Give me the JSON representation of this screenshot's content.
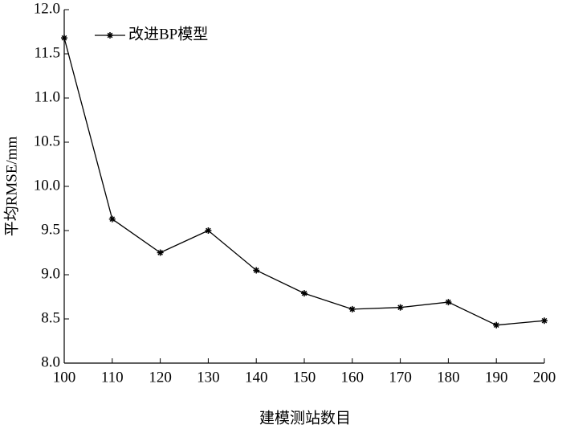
{
  "chart_data": {
    "type": "line",
    "x": [
      100,
      110,
      120,
      130,
      140,
      150,
      160,
      170,
      180,
      190,
      200
    ],
    "series": [
      {
        "name": "改进BP模型",
        "color": "#000000",
        "marker": "asterisk",
        "values": [
          11.68,
          9.63,
          9.25,
          9.5,
          9.05,
          8.79,
          8.61,
          8.63,
          8.69,
          8.43,
          8.48
        ]
      }
    ],
    "xlabel": "建模测站数目",
    "ylabel": "平均RMSE/mm",
    "xlim": [
      100,
      200
    ],
    "xticks": [
      100,
      110,
      120,
      130,
      140,
      150,
      160,
      170,
      180,
      190,
      200
    ],
    "ylim": [
      8,
      12
    ],
    "yticks": [
      {
        "value": 8,
        "label": "8.0"
      },
      8.5,
      {
        "value": 9,
        "label": "9.0"
      },
      9.5,
      {
        "value": 10,
        "label": "10.0"
      },
      10.5,
      {
        "value": 11,
        "label": "11.0"
      },
      11.5,
      {
        "value": 12,
        "label": "12.0"
      }
    ],
    "legend": "upper left",
    "grid": false
  }
}
